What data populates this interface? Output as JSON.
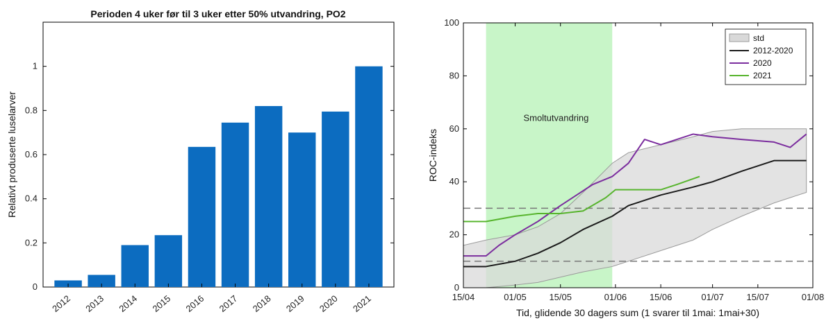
{
  "chart_data": [
    {
      "type": "bar",
      "title": "Perioden 4 uker før til 3 uker etter 50% utvandring, PO2",
      "xlabel": "",
      "ylabel": "Relativt produserte luselarver",
      "ylim": [
        0,
        1.2
      ],
      "yticks": [
        "0",
        "0.2",
        "0.4",
        "0.6",
        "0.8",
        "1"
      ],
      "yticks_values": [
        0,
        0.2,
        0.4,
        0.6,
        0.8,
        1.0
      ],
      "categories": [
        "2012",
        "2013",
        "2014",
        "2015",
        "2016",
        "2017",
        "2018",
        "2019",
        "2020",
        "2021"
      ],
      "values": [
        0.03,
        0.055,
        0.19,
        0.235,
        0.635,
        0.745,
        0.82,
        0.7,
        0.795,
        1.0
      ],
      "color": "#0c6cc0"
    },
    {
      "type": "line",
      "title": "",
      "xlabel": "Tid, glidende 30 dagers sum (1 svarer til 1mai: 1mai+30)",
      "ylabel": "ROC-indeks",
      "xlim": [
        "15/04",
        "01/08"
      ],
      "ylim": [
        0,
        100
      ],
      "xticks": [
        "15/04",
        "01/05",
        "15/05",
        "01/06",
        "15/06",
        "01/07",
        "15/07",
        "01/08"
      ],
      "yticks": [
        "0",
        "20",
        "40",
        "60",
        "80",
        "100"
      ],
      "yticks_values": [
        0,
        20,
        40,
        60,
        80,
        100
      ],
      "shaded_region": {
        "label": "Smoltutvandring",
        "x_from": "22/04",
        "x_to": "31/05",
        "color": "#c8f5c8"
      },
      "hlines": [
        10,
        30
      ],
      "legend": [
        "std",
        "2012-2020",
        "2020",
        "2021"
      ],
      "legend_position": "top-right",
      "series": [
        {
          "name": "std",
          "kind": "band",
          "color": "#d9d9d9",
          "x": [
            "15/04",
            "22/04",
            "01/05",
            "08/05",
            "15/05",
            "22/05",
            "31/05",
            "05/06",
            "15/06",
            "25/06",
            "01/07",
            "10/07",
            "20/07",
            "30/07"
          ],
          "upper": [
            16,
            18,
            20,
            23,
            28,
            36,
            47,
            51,
            54,
            57,
            59,
            60,
            60,
            60
          ],
          "lower": [
            0,
            0,
            1,
            2,
            4,
            6,
            8,
            10,
            14,
            18,
            22,
            27,
            32,
            36
          ]
        },
        {
          "name": "2012-2020",
          "color": "#1a1a1a",
          "x": [
            "15/04",
            "22/04",
            "01/05",
            "08/05",
            "15/05",
            "22/05",
            "31/05",
            "05/06",
            "15/06",
            "25/06",
            "01/07",
            "10/07",
            "20/07",
            "30/07"
          ],
          "values": [
            8,
            8,
            10,
            13,
            17,
            22,
            27,
            31,
            35,
            38,
            40,
            44,
            48,
            48
          ]
        },
        {
          "name": "2020",
          "color": "#7b2d9e",
          "x": [
            "15/04",
            "22/04",
            "26/04",
            "01/05",
            "08/05",
            "15/05",
            "20/05",
            "25/05",
            "31/05",
            "05/06",
            "10/06",
            "15/06",
            "20/06",
            "25/06",
            "01/07",
            "10/07",
            "20/07",
            "25/07",
            "30/07"
          ],
          "values": [
            12,
            12,
            16,
            20,
            25,
            31,
            35,
            39,
            42,
            47,
            56,
            54,
            56,
            58,
            57,
            56,
            55,
            53,
            58
          ]
        },
        {
          "name": "2021",
          "color": "#57b42d",
          "x": [
            "15/04",
            "22/04",
            "01/05",
            "08/05",
            "15/05",
            "22/05",
            "29/05",
            "01/06",
            "08/06",
            "15/06",
            "20/06",
            "27/06"
          ],
          "values": [
            25,
            25,
            27,
            28,
            28,
            29,
            34,
            37,
            37,
            37,
            39,
            42
          ]
        }
      ]
    }
  ]
}
